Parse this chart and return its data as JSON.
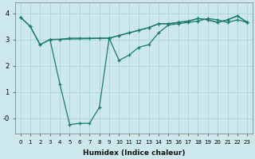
{
  "xlabel": "Humidex (Indice chaleur)",
  "bg_color": "#cce8ec",
  "grid_color": "#b0d8dc",
  "line_color": "#1a7a6e",
  "xlim": [
    -0.5,
    23.5
  ],
  "ylim": [
    -0.6,
    4.4
  ],
  "yticks": [
    0,
    1,
    2,
    3,
    4
  ],
  "ytick_labels": [
    "-0",
    "1",
    "2",
    "3",
    "4"
  ],
  "xticks": [
    0,
    1,
    2,
    3,
    4,
    5,
    6,
    7,
    8,
    9,
    10,
    11,
    12,
    13,
    14,
    15,
    16,
    17,
    18,
    19,
    20,
    21,
    22,
    23
  ],
  "line1_x": [
    0,
    1,
    2,
    3,
    4,
    5,
    6,
    7,
    8,
    9,
    10,
    11,
    12,
    13,
    14,
    15,
    16,
    17,
    18,
    19,
    20,
    21,
    22,
    23
  ],
  "line1_y": [
    3.85,
    3.5,
    2.8,
    3.0,
    3.0,
    3.05,
    3.05,
    3.05,
    3.05,
    3.05,
    3.15,
    3.25,
    3.35,
    3.45,
    3.6,
    3.6,
    3.65,
    3.7,
    3.8,
    3.75,
    3.65,
    3.75,
    3.9,
    3.65
  ],
  "line2_x": [
    0,
    1,
    2,
    3,
    9,
    10,
    11,
    12,
    13,
    14,
    15,
    16,
    17,
    18,
    19,
    20,
    21,
    22,
    23
  ],
  "line2_y": [
    3.85,
    3.5,
    2.8,
    3.0,
    3.05,
    3.15,
    3.25,
    3.35,
    3.45,
    3.6,
    3.6,
    3.65,
    3.7,
    3.8,
    3.75,
    3.65,
    3.75,
    3.9,
    3.65
  ],
  "line3_x": [
    3,
    4,
    5,
    6,
    7,
    8,
    9
  ],
  "line3_y": [
    3.0,
    1.3,
    -0.25,
    -0.2,
    -0.2,
    0.4,
    3.05
  ],
  "line4_x": [
    9,
    10,
    11,
    12,
    13,
    14,
    15,
    16,
    17,
    18,
    19,
    20,
    21,
    22,
    23
  ],
  "line4_y": [
    3.05,
    2.2,
    2.4,
    2.7,
    2.8,
    3.25,
    3.55,
    3.6,
    3.65,
    3.7,
    3.8,
    3.75,
    3.65,
    3.75,
    3.65
  ]
}
